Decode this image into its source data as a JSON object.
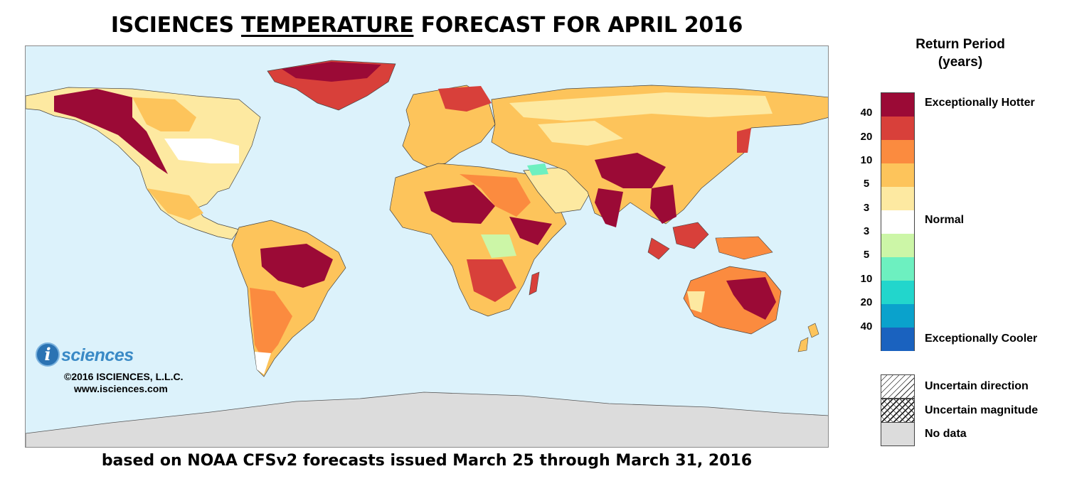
{
  "title": {
    "prefix": "ISCIENCES",
    "emphasis": "TEMPERATURE",
    "suffix": "FORECAST FOR APRIL 2016"
  },
  "footer": "based on NOAA CFSv2 forecasts issued March 25 through March 31, 2016",
  "branding": {
    "logo_letter": "i",
    "logo_word": "sciences",
    "copyright": "©2016 ISCIENCES, L.L.C.",
    "website": "www.isciences.com"
  },
  "legend": {
    "title_line1": "Return Period",
    "title_line2": "(years)",
    "swatch_colors": [
      "#9b0a36",
      "#d8403a",
      "#fb8b3f",
      "#fdc45b",
      "#fde9a1",
      "#ffffff",
      "#ccf6a7",
      "#6df0c0",
      "#22d6cc",
      "#0aa2cc",
      "#1a62bf"
    ],
    "ticks": [
      "40",
      "20",
      "10",
      "5",
      "3",
      "3",
      "5",
      "10",
      "20",
      "40"
    ],
    "label_hot": "Exceptionally Hotter",
    "label_normal": "Normal",
    "label_cool": "Exceptionally Cooler",
    "label_uncertain_direction": "Uncertain direction",
    "label_uncertain_magnitude": "Uncertain magnitude",
    "label_no_data": "No data"
  },
  "map": {
    "ocean_color": "#dcf2fb",
    "no_data_color": "#dcdcdc"
  }
}
